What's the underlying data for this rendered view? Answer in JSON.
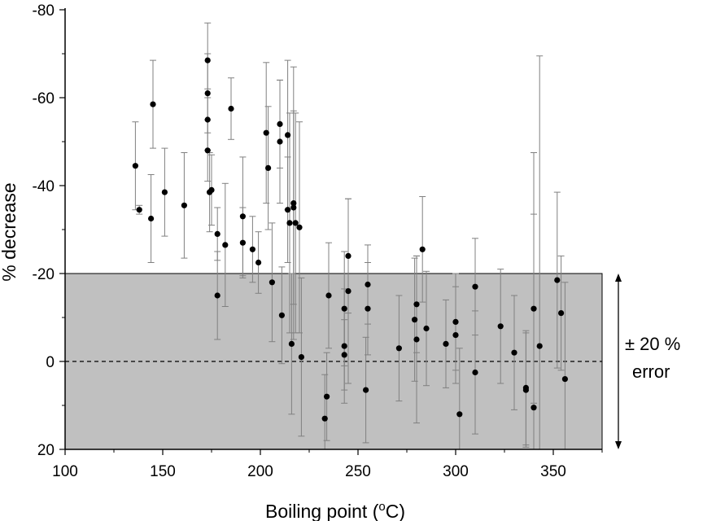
{
  "chart_data": {
    "type": "scatter",
    "xlabel": "Boiling point (",
    "xlabel_sup": "o",
    "xlabel_unit": "C)",
    "ylabel": "% decrease",
    "xlim": [
      100,
      375
    ],
    "ylim": [
      20,
      -80
    ],
    "x_ticks": [
      100,
      150,
      200,
      250,
      300,
      350
    ],
    "y_ticks": [
      -80,
      -60,
      -40,
      -20,
      0,
      20
    ],
    "x_tick_labels": [
      "100",
      "150",
      "200",
      "250",
      "300",
      "350"
    ],
    "y_tick_labels": [
      "-80",
      "-60",
      "-40",
      "-20",
      "0",
      "20"
    ],
    "band": {
      "from": -20,
      "to": 20,
      "color": "#c0c0c0"
    },
    "reference_line": {
      "y": 0,
      "style": "dashed"
    },
    "annotation": {
      "line1": "± 20 %",
      "line2": "error"
    },
    "colors": {
      "points": "#000000",
      "error_bars": "#808080",
      "band": "#c0c0c0"
    },
    "points": [
      {
        "x": 136,
        "y": -44.5,
        "err": 10
      },
      {
        "x": 138,
        "y": -34.5,
        "err": 1
      },
      {
        "x": 144,
        "y": -32.5,
        "err": 10
      },
      {
        "x": 145,
        "y": -58.5,
        "err": 10
      },
      {
        "x": 151,
        "y": -38.5,
        "err": 10
      },
      {
        "x": 161,
        "y": -35.5,
        "err": 12
      },
      {
        "x": 173,
        "y": -68.5,
        "err": 8.5
      },
      {
        "x": 173,
        "y": -61,
        "err": 9
      },
      {
        "x": 173,
        "y": -55,
        "err": 7
      },
      {
        "x": 173,
        "y": -48,
        "err": 7
      },
      {
        "x": 174,
        "y": -38.5,
        "err": 9
      },
      {
        "x": 175,
        "y": -39,
        "err": 8
      },
      {
        "x": 178,
        "y": -29,
        "err": 6
      },
      {
        "x": 178,
        "y": -15,
        "err": 10
      },
      {
        "x": 182,
        "y": -26.5,
        "err": 14
      },
      {
        "x": 185,
        "y": -57.5,
        "err": 7
      },
      {
        "x": 191,
        "y": -33,
        "err": 13.5
      },
      {
        "x": 191,
        "y": -27,
        "err": 8
      },
      {
        "x": 196,
        "y": -25.5,
        "err": 7.5
      },
      {
        "x": 199,
        "y": -22.5,
        "err": 7
      },
      {
        "x": 203,
        "y": -52,
        "err": 16
      },
      {
        "x": 204,
        "y": -44,
        "err": 14
      },
      {
        "x": 206,
        "y": -18,
        "err": 13.5
      },
      {
        "x": 210,
        "y": -54,
        "err": 10
      },
      {
        "x": 210,
        "y": -50,
        "err": 14
      },
      {
        "x": 211,
        "y": -10.5,
        "err": 11
      },
      {
        "x": 214,
        "y": -51.5,
        "err": 17
      },
      {
        "x": 214,
        "y": -34.5,
        "err": 12
      },
      {
        "x": 215,
        "y": -31.5,
        "err": 25
      },
      {
        "x": 216,
        "y": -4,
        "err": 16
      },
      {
        "x": 217,
        "y": -35,
        "err": 22
      },
      {
        "x": 217,
        "y": -36,
        "err": 31
      },
      {
        "x": 218,
        "y": -31.5,
        "err": 25
      },
      {
        "x": 220,
        "y": -30.5,
        "err": 24
      },
      {
        "x": 221,
        "y": -1,
        "err": 18
      },
      {
        "x": 233,
        "y": 13,
        "err": 10
      },
      {
        "x": 234,
        "y": 8,
        "err": 10
      },
      {
        "x": 235,
        "y": -15,
        "err": 12
      },
      {
        "x": 243,
        "y": -12,
        "err": 13
      },
      {
        "x": 243,
        "y": -3.5,
        "err": 13
      },
      {
        "x": 243,
        "y": -1.5,
        "err": 8
      },
      {
        "x": 245,
        "y": -24,
        "err": 13
      },
      {
        "x": 245,
        "y": -16,
        "err": 21
      },
      {
        "x": 254,
        "y": 6.5,
        "err": 12
      },
      {
        "x": 255,
        "y": -17.5,
        "err": 9
      },
      {
        "x": 255,
        "y": -12,
        "err": 10.5
      },
      {
        "x": 271,
        "y": -3,
        "err": 12
      },
      {
        "x": 279,
        "y": -9.5,
        "err": 14
      },
      {
        "x": 280,
        "y": -13,
        "err": 11
      },
      {
        "x": 280,
        "y": -5,
        "err": 19
      },
      {
        "x": 283,
        "y": -25.5,
        "err": 12
      },
      {
        "x": 285,
        "y": -7.5,
        "err": 13
      },
      {
        "x": 295,
        "y": -4,
        "err": 10
      },
      {
        "x": 300,
        "y": -9,
        "err": 11
      },
      {
        "x": 300,
        "y": -6,
        "err": 11
      },
      {
        "x": 302,
        "y": 12,
        "err": 15
      },
      {
        "x": 310,
        "y": -17,
        "err": 11
      },
      {
        "x": 310,
        "y": 2.5,
        "err": 14
      },
      {
        "x": 323,
        "y": -8,
        "err": 13
      },
      {
        "x": 330,
        "y": -2,
        "err": 13
      },
      {
        "x": 336,
        "y": 6,
        "err": 13
      },
      {
        "x": 336,
        "y": 6.5,
        "err": 13
      },
      {
        "x": 340,
        "y": -12,
        "err": 21.5
      },
      {
        "x": 340,
        "y": 10.5,
        "err": 58
      },
      {
        "x": 343,
        "y": -3.5,
        "err": 66
      },
      {
        "x": 352,
        "y": -18.5,
        "err": 20
      },
      {
        "x": 354,
        "y": -11,
        "err": 13
      },
      {
        "x": 356,
        "y": 4,
        "err": 22
      }
    ]
  }
}
